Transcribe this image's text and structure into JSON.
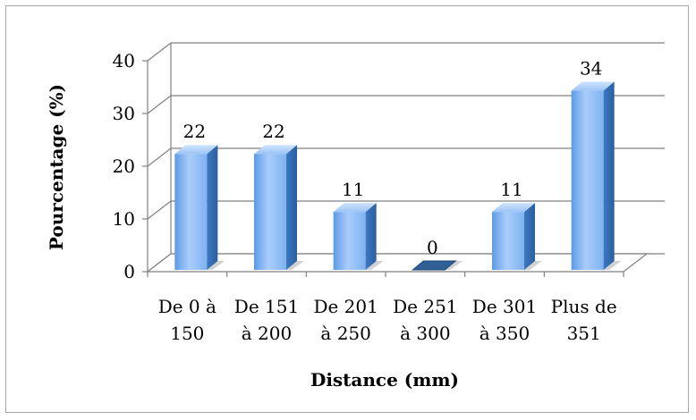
{
  "chart_data": {
    "type": "bar",
    "categories": [
      [
        "De 0 à",
        "150"
      ],
      [
        "De 151",
        "à 200"
      ],
      [
        "De 201",
        "à 250"
      ],
      [
        "De 251",
        "à 300"
      ],
      [
        "De 301",
        "à 350"
      ],
      [
        "Plus de",
        "351"
      ]
    ],
    "values": [
      22,
      22,
      11,
      0,
      11,
      34
    ],
    "data_labels": [
      "22",
      "22",
      "11",
      "0",
      "11",
      "34"
    ],
    "xlabel": "Distance (mm)",
    "ylabel": "Pourcentage (%)",
    "ylim": [
      0,
      40
    ],
    "yticks": [
      "0",
      "10",
      "20",
      "30",
      "40"
    ],
    "grid": true,
    "style": "3d-column",
    "colors": {
      "bar_light": "#b8d8ff",
      "bar_mid": "#6fa8ee",
      "bar_dark": "#2f6db5",
      "grid": "#808080"
    }
  }
}
